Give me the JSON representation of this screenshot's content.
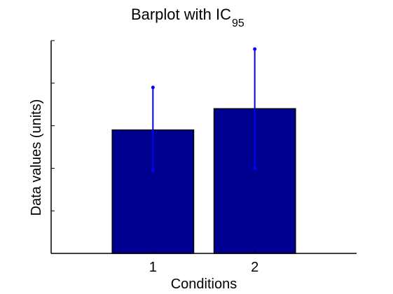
{
  "chart_data": {
    "type": "bar",
    "title_main": "Barplot with IC",
    "title_subscript": "95",
    "xlabel": "Conditions",
    "ylabel": "Data values (units)",
    "categories": [
      "1",
      "2"
    ],
    "values": [
      2.9,
      3.4
    ],
    "ci_lower": [
      1.95,
      2.0
    ],
    "ci_upper": [
      3.9,
      4.8
    ],
    "xlim": [
      0,
      3
    ],
    "ylim": [
      0,
      5
    ],
    "y_ticks": [
      0,
      1,
      2,
      3,
      4,
      5
    ],
    "y_tick_labels_shown": false,
    "grid": false,
    "bar_color": "#000090",
    "errorbar_color": "#0000ff"
  }
}
